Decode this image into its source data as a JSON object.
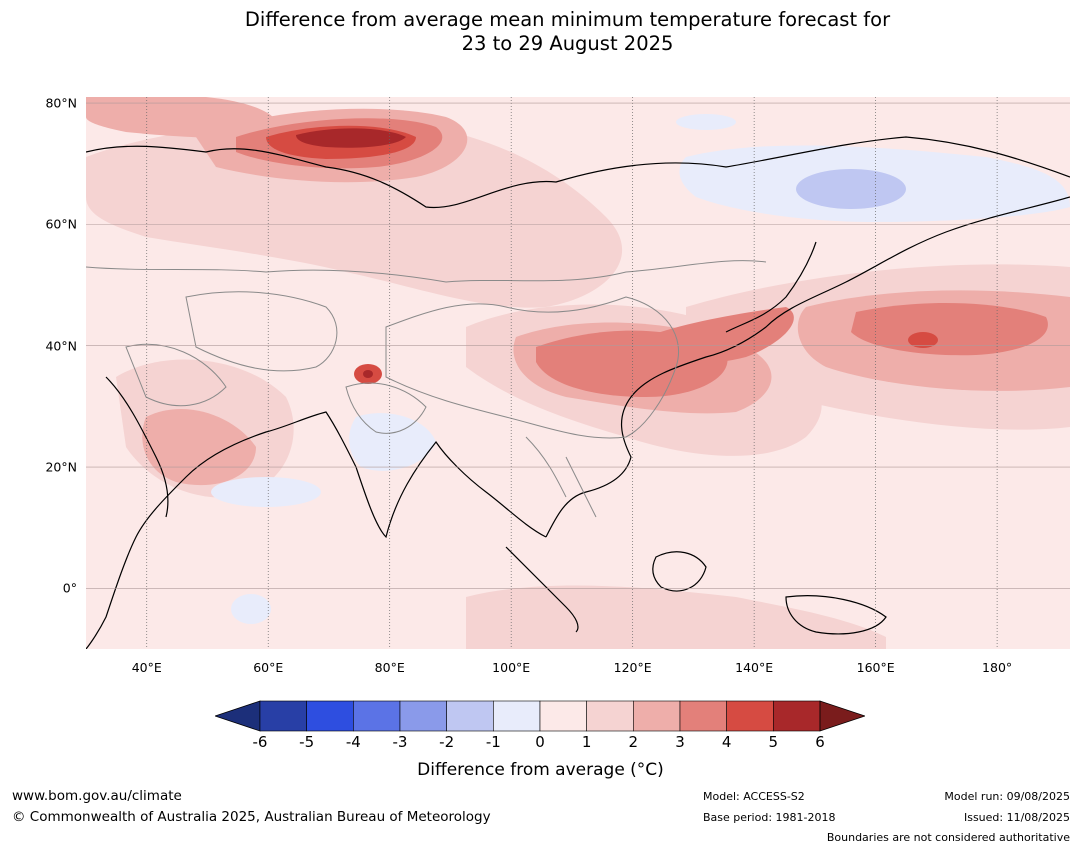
{
  "title": {
    "line1": "Difference from average mean minimum temperature forecast for",
    "line2": "23 to 29 August 2025"
  },
  "map": {
    "extent_lon": [
      30,
      192
    ],
    "extent_lat": [
      -10,
      81
    ],
    "ocean_color": "#fce9e8",
    "lat_ticks": [
      {
        "value": 80,
        "label": "80°N"
      },
      {
        "value": 60,
        "label": "60°N"
      },
      {
        "value": 40,
        "label": "40°N"
      },
      {
        "value": 20,
        "label": "20°N"
      },
      {
        "value": 0,
        "label": "0°"
      }
    ],
    "lon_ticks": [
      {
        "value": 40,
        "label": "40°E"
      },
      {
        "value": 60,
        "label": "60°E"
      },
      {
        "value": 80,
        "label": "80°E"
      },
      {
        "value": 100,
        "label": "100°E"
      },
      {
        "value": 120,
        "label": "120°E"
      },
      {
        "value": 140,
        "label": "140°E"
      },
      {
        "value": 160,
        "label": "160°E"
      },
      {
        "value": 180,
        "label": "180°"
      }
    ]
  },
  "colorbar": {
    "title": "Difference from average (°C)",
    "bins": [
      {
        "from": -6,
        "to": -5,
        "color": "#283fa6"
      },
      {
        "from": -5,
        "to": -4,
        "color": "#2e4ee0"
      },
      {
        "from": -4,
        "to": -3,
        "color": "#5b73e6"
      },
      {
        "from": -3,
        "to": -2,
        "color": "#8a9aea"
      },
      {
        "from": -2,
        "to": -1,
        "color": "#bfc7f2"
      },
      {
        "from": -1,
        "to": 0,
        "color": "#e8ecfb"
      },
      {
        "from": 0,
        "to": 1,
        "color": "#fce9e8"
      },
      {
        "from": 1,
        "to": 2,
        "color": "#f5d3d2"
      },
      {
        "from": 2,
        "to": 3,
        "color": "#eeaeaa"
      },
      {
        "from": 3,
        "to": 4,
        "color": "#e3807a"
      },
      {
        "from": 4,
        "to": 5,
        "color": "#d64b42"
      },
      {
        "from": 5,
        "to": 6,
        "color": "#a8282a"
      }
    ],
    "under_color": "#1c2f7a",
    "over_color": "#7a1c1c",
    "tick_labels": [
      "-6",
      "-5",
      "-4",
      "-3",
      "-2",
      "-1",
      "0",
      "1",
      "2",
      "3",
      "4",
      "5",
      "6"
    ]
  },
  "anomaly_regions": [
    {
      "lon": 75,
      "lat": 73,
      "rx": 18,
      "ry": 5,
      "level": 1
    },
    {
      "lon": 75,
      "lat": 73,
      "rx": 12,
      "ry": 3,
      "level": 3
    },
    {
      "lon": 120,
      "lat": 38,
      "rx": 14,
      "ry": 9,
      "level": 3
    },
    {
      "lon": 168,
      "lat": 40,
      "rx": 18,
      "ry": 6,
      "level": 3
    },
    {
      "lon": 170,
      "lat": 40,
      "rx": 8,
      "ry": 3,
      "level": 4
    },
    {
      "lon": 160,
      "lat": 68,
      "rx": 20,
      "ry": 6,
      "level": -1
    },
    {
      "lon": 155,
      "lat": 68,
      "rx": 8,
      "ry": 3,
      "level": -2
    },
    {
      "lon": 79,
      "lat": 20,
      "rx": 6,
      "ry": 4,
      "level": -1
    }
  ],
  "footer": {
    "url": "www.bom.gov.au/climate",
    "copyright": "© Commonwealth of Australia 2025, Australian Bureau of Meteorology",
    "model": "Model: ACCESS-S2",
    "base_period": "Base period: 1981-2018",
    "model_run": "Model run: 09/08/2025",
    "issued": "Issued: 11/08/2025",
    "disclaimer": "Boundaries are not considered authoritative"
  }
}
